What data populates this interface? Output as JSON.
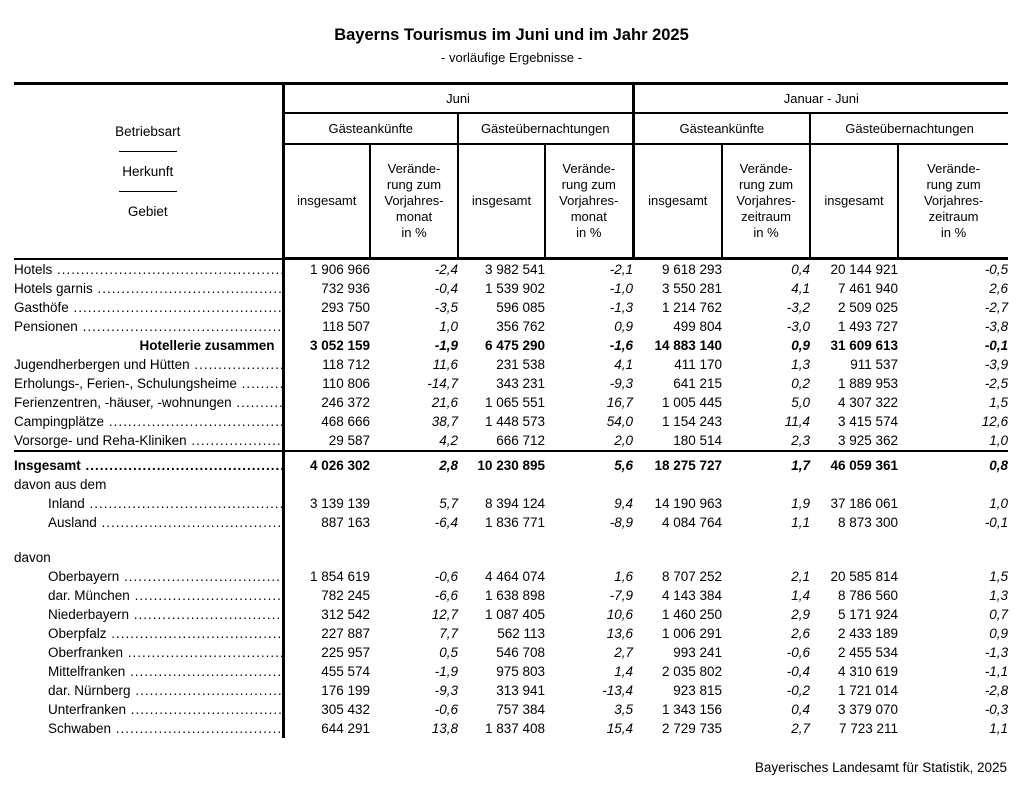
{
  "title": "Bayerns Tourismus im Juni und im Jahr 2025",
  "subtitle": "- vorläufige Ergebnisse -",
  "footer": "Bayerisches Landesamt für Statistik, 2025",
  "table": {
    "header": {
      "stub": [
        "Betriebsart",
        "Herkunft",
        "Gebiet"
      ],
      "groups": [
        "Juni",
        "Januar - Juni"
      ],
      "subgroups": [
        "Gästeankünfte",
        "Gästeübernachtungen",
        "Gästeankünfte",
        "Gästeübernachtungen"
      ],
      "measures": [
        "insgesamt",
        "Verände-\nrung zum\nVorjahres-\nmonat\nin %",
        "insgesamt",
        "Verände-\nrung zum\nVorjahres-\nmonat\nin %",
        "insgesamt",
        "Verände-\nrung zum\nVorjahres-\nzeitraum\nin %",
        "insgesamt",
        "Verände-\nrung zum\nVorjahres-\nzeitraum\nin %"
      ]
    },
    "rows": [
      {
        "type": "item",
        "label": "Hotels",
        "values": [
          "1 906 966",
          "-2,4",
          "3 982 541",
          "-2,1",
          "9 618 293",
          "0,4",
          "20 144 921",
          "-0,5"
        ]
      },
      {
        "type": "item",
        "label": "Hotels garnis",
        "values": [
          "732 936",
          "-0,4",
          "1 539 902",
          "-1,0",
          "3 550 281",
          "4,1",
          "7 461 940",
          "2,6"
        ]
      },
      {
        "type": "item",
        "label": "Gasthöfe",
        "values": [
          "293 750",
          "-3,5",
          "596 085",
          "-1,3",
          "1 214 762",
          "-3,2",
          "2 509 025",
          "-2,7"
        ]
      },
      {
        "type": "item",
        "label": "Pensionen",
        "values": [
          "118 507",
          "1,0",
          "356 762",
          "0,9",
          "499 804",
          "-3,0",
          "1 493 727",
          "-3,8"
        ]
      },
      {
        "type": "sum",
        "label": "Hotellerie zusammen",
        "values": [
          "3 052 159",
          "-1,9",
          "6 475 290",
          "-1,6",
          "14 883 140",
          "0,9",
          "31 609 613",
          "-0,1"
        ]
      },
      {
        "type": "item",
        "label": "Jugendherbergen und Hütten",
        "values": [
          "118 712",
          "11,6",
          "231 538",
          "4,1",
          "411 170",
          "1,3",
          "911 537",
          "-3,9"
        ]
      },
      {
        "type": "item",
        "label": "Erholungs-, Ferien-, Schulungsheime",
        "values": [
          "110 806",
          "-14,7",
          "343 231",
          "-9,3",
          "641 215",
          "0,2",
          "1 889 953",
          "-2,5"
        ]
      },
      {
        "type": "item",
        "label": "Ferienzentren, -häuser, -wohnungen",
        "values": [
          "246 372",
          "21,6",
          "1 065 551",
          "16,7",
          "1 005 445",
          "5,0",
          "4 307 322",
          "1,5"
        ]
      },
      {
        "type": "item",
        "label": "Campingplätze",
        "values": [
          "468 666",
          "38,7",
          "1 448 573",
          "54,0",
          "1 154 243",
          "11,4",
          "3 415 574",
          "12,6"
        ]
      },
      {
        "type": "item",
        "label": "Vorsorge- und Reha-Kliniken",
        "values": [
          "29 587",
          "4,2",
          "666 712",
          "2,0",
          "180 514",
          "2,3",
          "3 925 362",
          "1,0"
        ]
      },
      {
        "type": "total",
        "label": "Insgesamt",
        "rule": true,
        "values": [
          "4 026 302",
          "2,8",
          "10 230 895",
          "5,6",
          "18 275 727",
          "1,7",
          "46 059 361",
          "0,8"
        ]
      },
      {
        "type": "group",
        "label": "davon aus dem"
      },
      {
        "type": "item",
        "label": "Inland",
        "indent": true,
        "values": [
          "3 139 139",
          "5,7",
          "8 394 124",
          "9,4",
          "14 190 963",
          "1,9",
          "37 186 061",
          "1,0"
        ]
      },
      {
        "type": "item",
        "label": "Ausland",
        "indent": true,
        "values": [
          "887 163",
          "-6,4",
          "1 836 771",
          "-8,9",
          "4 084 764",
          "1,1",
          "8 873 300",
          "-0,1"
        ]
      },
      {
        "type": "spacer"
      },
      {
        "type": "group",
        "label": "davon"
      },
      {
        "type": "item",
        "label": "Oberbayern",
        "indent": true,
        "values": [
          "1 854 619",
          "-0,6",
          "4 464 074",
          "1,6",
          "8 707 252",
          "2,1",
          "20 585 814",
          "1,5"
        ]
      },
      {
        "type": "item",
        "label": "dar. München",
        "indent": true,
        "values": [
          "782 245",
          "-6,6",
          "1 638 898",
          "-7,9",
          "4 143 384",
          "1,4",
          "8 786 560",
          "1,3"
        ]
      },
      {
        "type": "item",
        "label": "Niederbayern",
        "indent": true,
        "values": [
          "312 542",
          "12,7",
          "1 087 405",
          "10,6",
          "1 460 250",
          "2,9",
          "5 171 924",
          "0,7"
        ]
      },
      {
        "type": "item",
        "label": "Oberpfalz",
        "indent": true,
        "values": [
          "227 887",
          "7,7",
          "562 113",
          "13,6",
          "1 006 291",
          "2,6",
          "2 433 189",
          "0,9"
        ]
      },
      {
        "type": "item",
        "label": "Oberfranken",
        "indent": true,
        "values": [
          "225 957",
          "0,5",
          "546 708",
          "2,7",
          "993 241",
          "-0,6",
          "2 455 534",
          "-1,3"
        ]
      },
      {
        "type": "item",
        "label": "Mittelfranken",
        "indent": true,
        "values": [
          "455 574",
          "-1,9",
          "975 803",
          "1,4",
          "2 035 802",
          "-0,4",
          "4 310 619",
          "-1,1"
        ]
      },
      {
        "type": "item",
        "label": "dar. Nürnberg",
        "indent": true,
        "values": [
          "176 199",
          "-9,3",
          "313 941",
          "-13,4",
          "923 815",
          "-0,2",
          "1 721 014",
          "-2,8"
        ]
      },
      {
        "type": "item",
        "label": "Unterfranken",
        "indent": true,
        "values": [
          "305 432",
          "-0,6",
          "757 384",
          "3,5",
          "1 343 156",
          "0,4",
          "3 379 070",
          "-0,3"
        ]
      },
      {
        "type": "item",
        "label": "Schwaben",
        "indent": true,
        "values": [
          "644 291",
          "13,8",
          "1 837 408",
          "15,4",
          "2 729 735",
          "2,7",
          "7 723 211",
          "1,1"
        ]
      }
    ]
  }
}
